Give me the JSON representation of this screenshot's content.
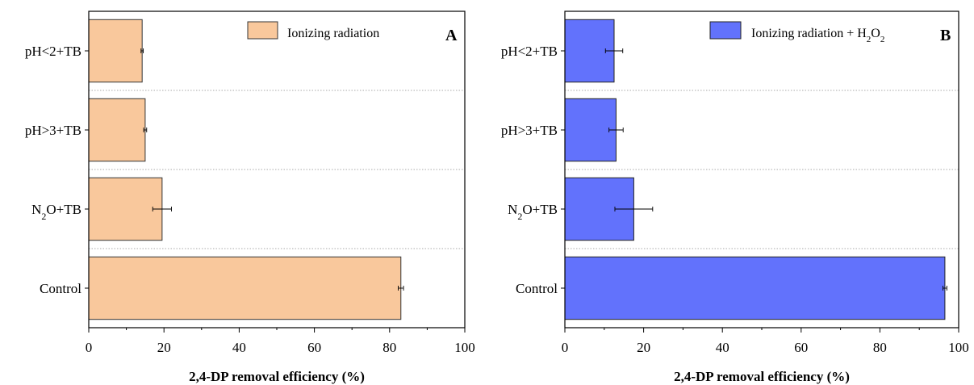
{
  "chart_data": [
    {
      "type": "bar",
      "orientation": "horizontal",
      "panel_label": "A",
      "categories": [
        "Control",
        "N2O+TB",
        "pH>3+TB",
        "pH<2+TB"
      ],
      "category_display": [
        {
          "main": "Control",
          "sub": "",
          "rest": ""
        },
        {
          "main": "N",
          "sub": "2",
          "rest": "O+TB"
        },
        {
          "main": "pH>3+TB",
          "sub": "",
          "rest": ""
        },
        {
          "main": "pH<2+TB",
          "sub": "",
          "rest": ""
        }
      ],
      "series": [
        {
          "name": "Ionizing radiation",
          "values": [
            83.0,
            19.5,
            15.0,
            14.2
          ],
          "errors": [
            0.7,
            2.5,
            0.4,
            0.3
          ]
        }
      ],
      "xlabel": "2,4-DP removal efficiency (%)",
      "xlim": [
        0,
        100
      ],
      "xticks": [
        0,
        20,
        40,
        60,
        80,
        100
      ],
      "grid": "horizontal dotted between categories",
      "legend_position": "top-right",
      "colors": {
        "bar": "#f9c89c",
        "edge": "#333333"
      }
    },
    {
      "type": "bar",
      "orientation": "horizontal",
      "panel_label": "B",
      "categories": [
        "Control",
        "N2O+TB",
        "pH>3+TB",
        "pH<2+TB"
      ],
      "category_display": [
        {
          "main": "Control",
          "sub": "",
          "rest": ""
        },
        {
          "main": "N",
          "sub": "2",
          "rest": "O+TB"
        },
        {
          "main": "pH>3+TB",
          "sub": "",
          "rest": ""
        },
        {
          "main": "pH<2+TB",
          "sub": "",
          "rest": ""
        }
      ],
      "series": [
        {
          "name": "Ionizing radiation + H2O2",
          "name_display": {
            "parts": [
              "Ionizing radiation + H",
              "2",
              "O",
              "2"
            ]
          },
          "values": [
            96.5,
            17.5,
            13.0,
            12.5
          ],
          "errors": [
            0.5,
            4.8,
            1.8,
            2.2
          ]
        }
      ],
      "xlabel": "2,4-DP removal efficiency (%)",
      "xlim": [
        0,
        100
      ],
      "xticks": [
        0,
        20,
        40,
        60,
        80,
        100
      ],
      "grid": "horizontal dotted between categories",
      "legend_position": "top-right",
      "colors": {
        "bar": "#6272fc",
        "edge": "#222222"
      }
    }
  ]
}
